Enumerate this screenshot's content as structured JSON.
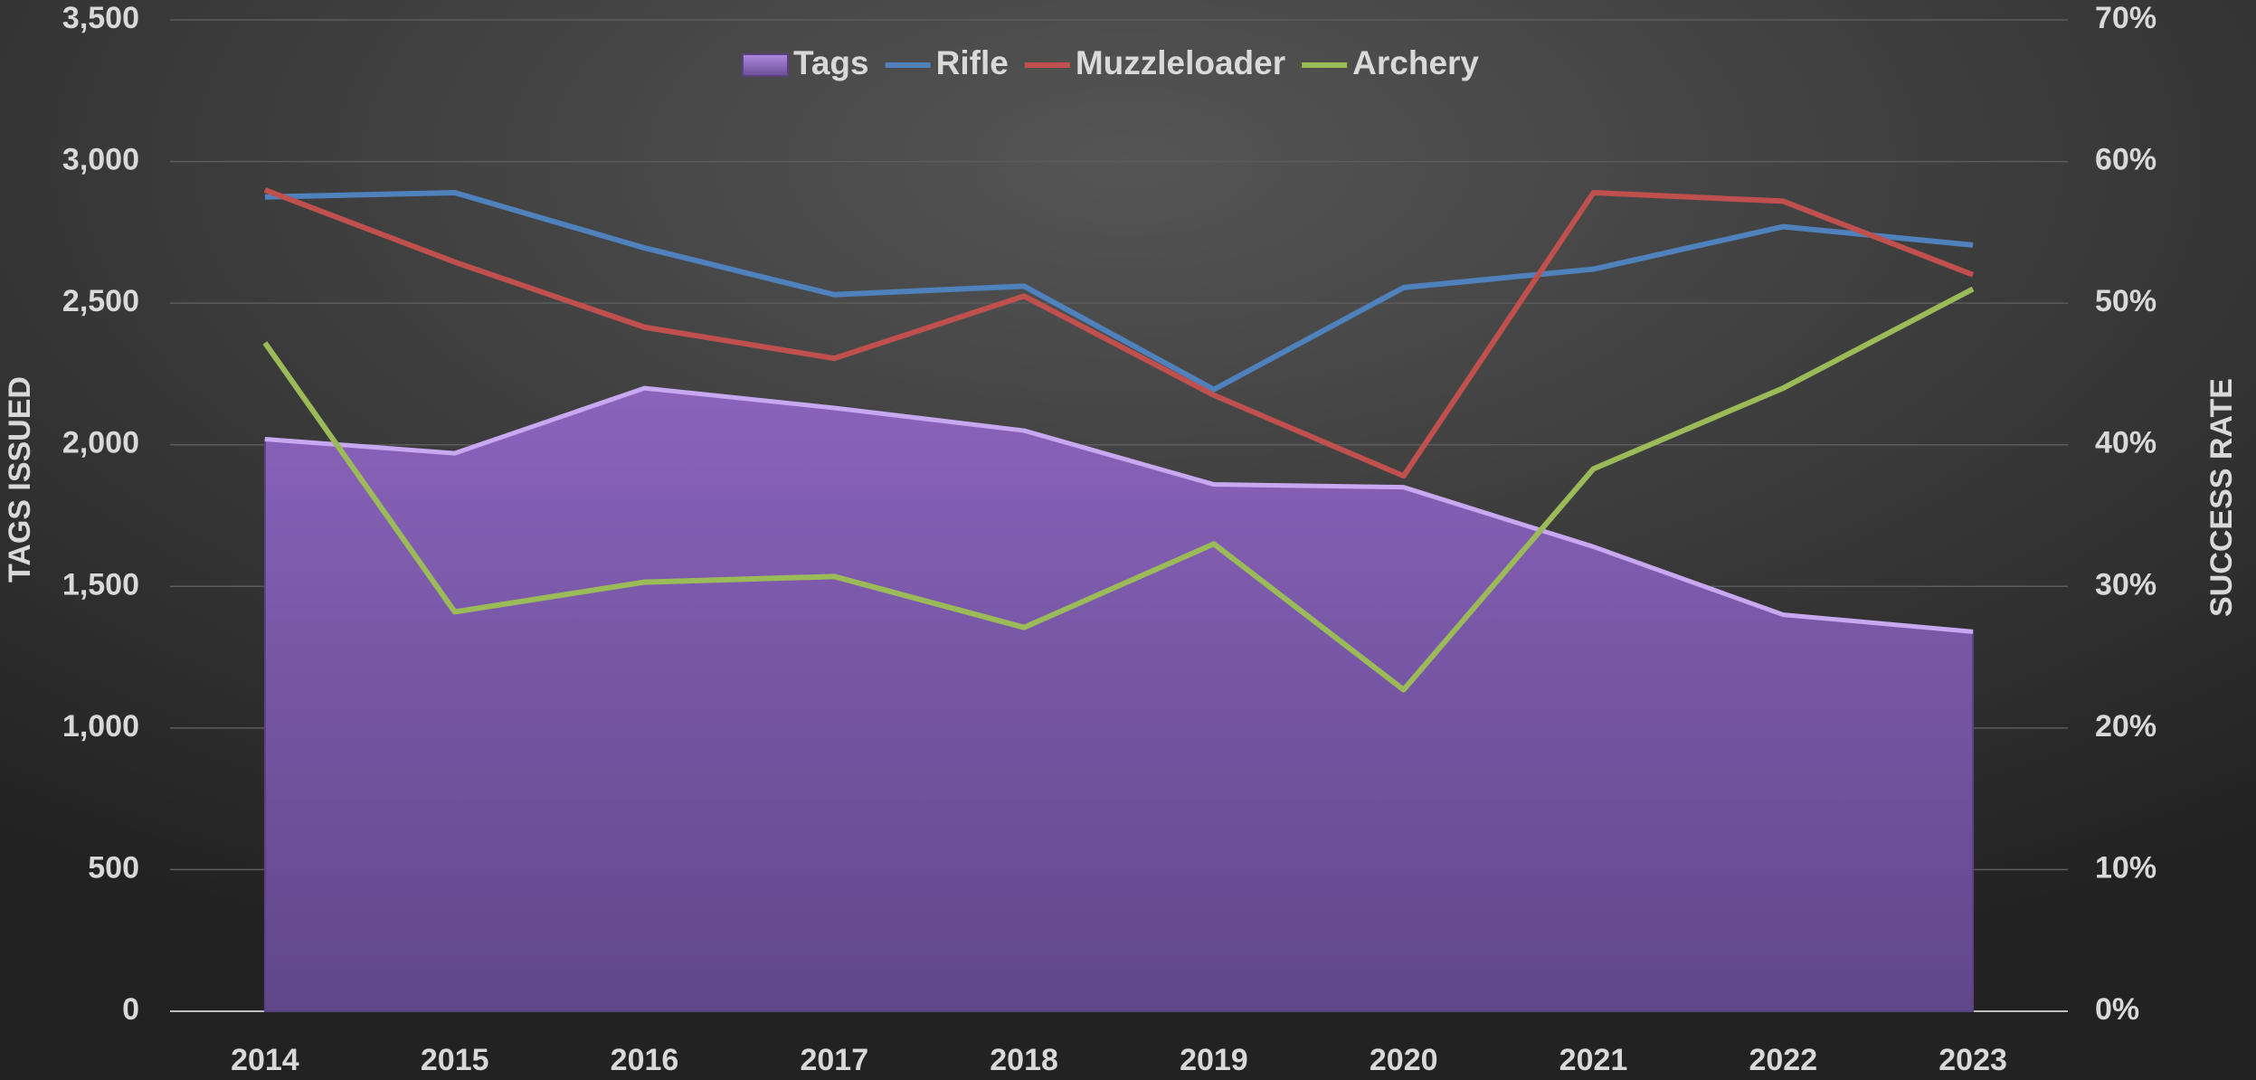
{
  "chart_data": {
    "type": "combo",
    "categories": [
      "2014",
      "2015",
      "2016",
      "2017",
      "2018",
      "2019",
      "2020",
      "2021",
      "2022",
      "2023"
    ],
    "ylabel": "TAGS ISSUED",
    "y2label": "SUCCESS RATE",
    "ylim": [
      0,
      3500
    ],
    "yticks": [
      0,
      {
        "value": 500,
        "label": "500"
      },
      {
        "value": 1000,
        "label": "1,000"
      },
      {
        "value": 1500,
        "label": "1,500"
      },
      {
        "value": 2000,
        "label": "2,000"
      },
      {
        "value": 2500,
        "label": "2,500"
      },
      {
        "value": 3000,
        "label": "3,000"
      },
      {
        "value": 3500,
        "label": "3,500"
      }
    ],
    "y2lim": [
      0,
      70
    ],
    "y2ticks": [
      {
        "value": 0,
        "label": "0%"
      },
      {
        "value": 10,
        "label": "10%"
      },
      {
        "value": 20,
        "label": "20%"
      },
      {
        "value": 30,
        "label": "30%"
      },
      {
        "value": 40,
        "label": "40%"
      },
      {
        "value": 50,
        "label": "50%"
      },
      {
        "value": 60,
        "label": "60%"
      },
      {
        "value": 70,
        "label": "70%"
      }
    ],
    "grid": true,
    "legend": "top",
    "series": [
      {
        "name": "Tags",
        "type": "area",
        "color": "#8060b0",
        "values": [
          2020,
          1970,
          2200,
          2130,
          2050,
          1860,
          1850,
          1640,
          1400,
          1340
        ]
      },
      {
        "name": "Rifle",
        "type": "line",
        "axis": "y2",
        "color": "#4f81bd",
        "values": [
          57.5,
          57.8,
          53.9,
          50.6,
          51.2,
          43.9,
          51.1,
          52.4,
          55.4,
          54.1
        ]
      },
      {
        "name": "Muzzleloader",
        "type": "line",
        "axis": "y2",
        "color": "#c0504d",
        "values": [
          58.0,
          52.9,
          48.3,
          46.1,
          50.5,
          43.5,
          37.8,
          57.8,
          57.2,
          52.0
        ]
      },
      {
        "name": "Archery",
        "type": "line",
        "axis": "y2",
        "color": "#9bbb59",
        "values": [
          47.2,
          28.2,
          30.3,
          30.7,
          27.1,
          33.0,
          22.7,
          38.3,
          44.0,
          51.0
        ]
      }
    ]
  }
}
